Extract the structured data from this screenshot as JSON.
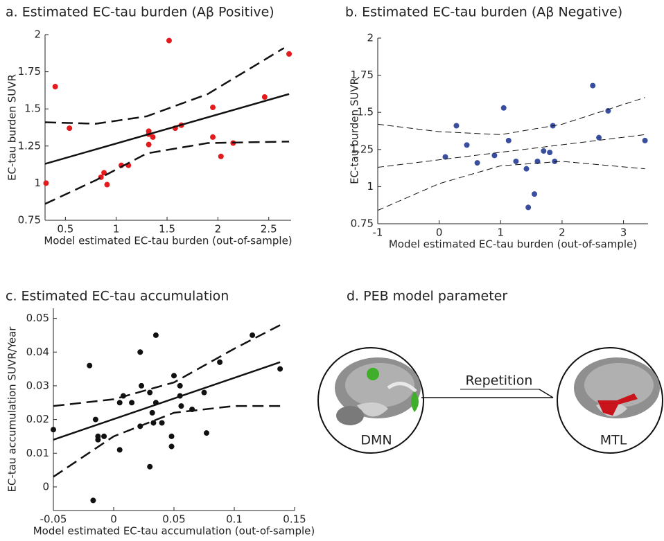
{
  "chart_data": [
    {
      "type": "scatter",
      "title": "a. Estimated EC-tau burden (Aβ Positive)",
      "xlabel": "Model estimated EC-tau burden (out-of-sample)",
      "ylabel": "EC-tau burden SUVR",
      "xlim": [
        0.3,
        2.72
      ],
      "ylim": [
        0.75,
        2
      ],
      "xticks": [
        0.5,
        1,
        1.5,
        2,
        2.5
      ],
      "yticks": [
        0.75,
        1,
        1.25,
        1.5,
        1.75,
        2
      ],
      "series": [
        {
          "style": "points",
          "color": "#e41a1c",
          "x": [
            0.31,
            0.4,
            0.54,
            0.85,
            0.88,
            0.91,
            1.05,
            1.12,
            1.32,
            1.32,
            1.32,
            1.36,
            1.52,
            1.58,
            1.64,
            1.95,
            1.95,
            2.03,
            2.15,
            2.46,
            2.7
          ],
          "values": [
            1.0,
            1.65,
            1.37,
            1.04,
            1.07,
            0.99,
            1.12,
            1.12,
            1.35,
            1.33,
            1.26,
            1.31,
            1.96,
            1.37,
            1.39,
            1.51,
            1.31,
            1.18,
            1.27,
            1.58,
            1.87
          ]
        },
        {
          "style": "solid",
          "color": "#111111",
          "x": [
            0.3,
            2.7
          ],
          "values": [
            1.13,
            1.6
          ]
        },
        {
          "style": "dashed",
          "color": "#111111",
          "x": [
            0.3,
            0.8,
            1.3,
            1.9,
            2.65
          ],
          "values": [
            1.41,
            1.4,
            1.45,
            1.6,
            1.91
          ]
        },
        {
          "style": "dashed",
          "color": "#111111",
          "x": [
            0.3,
            0.8,
            1.3,
            1.9,
            2.7
          ],
          "values": [
            0.86,
            1.02,
            1.2,
            1.27,
            1.28
          ]
        }
      ]
    },
    {
      "type": "scatter",
      "title": "b. Estimated EC-tau burden (Aβ Negative)",
      "xlabel": "Model estimated EC-tau burden (out-of-sample)",
      "ylabel": "EC-tau burden SUVR",
      "xlim": [
        -1,
        3.4
      ],
      "ylim": [
        0.75,
        2
      ],
      "xticks": [
        -1,
        0,
        1,
        2,
        3
      ],
      "yticks": [
        0.75,
        1,
        1.25,
        1.5,
        1.75,
        2
      ],
      "series": [
        {
          "style": "points",
          "color": "#3a4ea0",
          "x": [
            0.1,
            0.28,
            0.45,
            0.62,
            0.9,
            1.05,
            1.13,
            1.25,
            1.42,
            1.45,
            1.55,
            1.6,
            1.7,
            1.8,
            1.85,
            1.88,
            2.5,
            2.6,
            2.75,
            3.35
          ],
          "values": [
            1.2,
            1.41,
            1.28,
            1.16,
            1.21,
            1.53,
            1.31,
            1.17,
            1.12,
            0.86,
            0.95,
            1.17,
            1.24,
            1.23,
            1.41,
            1.17,
            1.68,
            1.33,
            1.51,
            1.31
          ]
        },
        {
          "style": "thin",
          "color": "#111111",
          "x": [
            -1,
            3.35
          ],
          "values": [
            1.13,
            1.35
          ]
        },
        {
          "style": "thin",
          "color": "#111111",
          "x": [
            -1,
            0,
            1,
            2,
            3.35
          ],
          "values": [
            1.42,
            1.37,
            1.35,
            1.42,
            1.6
          ]
        },
        {
          "style": "thin",
          "color": "#111111",
          "x": [
            -1,
            0,
            1,
            2,
            3.35
          ],
          "values": [
            0.84,
            1.02,
            1.14,
            1.17,
            1.12
          ]
        }
      ]
    },
    {
      "type": "scatter",
      "title": "c. Estimated EC-tau accumulation",
      "xlabel": "Model estimated EC-tau accumulation (out-of-sample)",
      "ylabel": "EC-tau accumulation SUVR/Year",
      "xlim": [
        -0.05,
        0.15
      ],
      "ylim": [
        -0.007,
        0.053
      ],
      "xticks": [
        -0.05,
        0,
        0.05,
        0.1,
        0.15
      ],
      "yticks": [
        0,
        0.01,
        0.02,
        0.03,
        0.04,
        0.05
      ],
      "series": [
        {
          "style": "points",
          "color": "#111111",
          "x": [
            -0.05,
            -0.02,
            -0.015,
            -0.013,
            -0.013,
            -0.008,
            -0.017,
            0.005,
            0.005,
            0.008,
            0.015,
            0.022,
            0.022,
            0.023,
            0.03,
            0.03,
            0.032,
            0.033,
            0.035,
            0.035,
            0.04,
            0.048,
            0.048,
            0.05,
            0.055,
            0.055,
            0.056,
            0.065,
            0.075,
            0.077,
            0.088,
            0.115,
            0.138
          ],
          "values": [
            0.017,
            0.036,
            0.02,
            0.015,
            0.014,
            0.015,
            -0.004,
            0.025,
            0.011,
            0.027,
            0.025,
            0.04,
            0.018,
            0.03,
            0.028,
            0.006,
            0.022,
            0.019,
            0.045,
            0.025,
            0.019,
            0.015,
            0.012,
            0.033,
            0.03,
            0.027,
            0.024,
            0.023,
            0.028,
            0.016,
            0.037,
            0.045,
            0.035
          ]
        },
        {
          "style": "solid",
          "color": "#111111",
          "x": [
            -0.05,
            0.138
          ],
          "values": [
            0.014,
            0.037
          ]
        },
        {
          "style": "dashed",
          "color": "#111111",
          "x": [
            -0.05,
            0,
            0.05,
            0.1,
            0.138
          ],
          "values": [
            0.024,
            0.026,
            0.031,
            0.041,
            0.048
          ]
        },
        {
          "style": "dashed",
          "color": "#111111",
          "x": [
            -0.05,
            0,
            0.05,
            0.1,
            0.138
          ],
          "values": [
            0.003,
            0.015,
            0.022,
            0.024,
            0.024
          ]
        }
      ]
    }
  ],
  "diagram": {
    "title": "d. PEB model parameter",
    "arrow_label": "Repetition",
    "nodes": [
      {
        "label": "DMN"
      },
      {
        "label": "MTL"
      }
    ]
  }
}
